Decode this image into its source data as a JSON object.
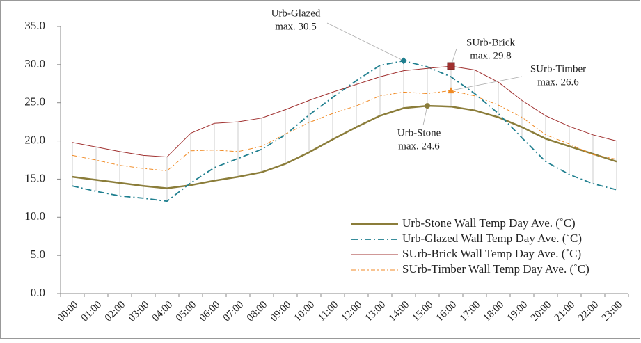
{
  "chart_data": {
    "type": "line",
    "categories": [
      "00:00",
      "01:00",
      "02:00",
      "03:00",
      "04:00",
      "05:00",
      "06:00",
      "07:00",
      "08:00",
      "09:00",
      "10:00",
      "11:00",
      "12:00",
      "13:00",
      "14:00",
      "15:00",
      "16:00",
      "17:00",
      "18:00",
      "19:00",
      "20:00",
      "21:00",
      "22:00",
      "23:00"
    ],
    "series": [
      {
        "name": "Urb-Stone Wall Temp Day Ave. (˚C)",
        "color": "#8b7d3a",
        "style": "solid",
        "values": [
          15.3,
          14.9,
          14.5,
          14.1,
          13.8,
          14.2,
          14.8,
          15.3,
          15.9,
          17.0,
          18.5,
          20.2,
          21.8,
          23.3,
          24.3,
          24.6,
          24.5,
          24.0,
          23.1,
          21.8,
          20.3,
          19.3,
          18.3,
          17.3
        ]
      },
      {
        "name": "Urb-Glazed Wall Temp Day Ave. (˚C)",
        "color": "#1f7f8f",
        "style": "dashdot",
        "values": [
          14.1,
          13.4,
          12.8,
          12.5,
          12.1,
          14.5,
          16.5,
          17.7,
          18.9,
          20.8,
          23.4,
          25.7,
          27.9,
          29.9,
          30.5,
          29.7,
          28.4,
          26.2,
          23.6,
          20.4,
          17.3,
          15.6,
          14.4,
          13.6
        ]
      },
      {
        "name": "SUrb-Brick Wall Temp Day Ave. (˚C)",
        "color": "#a0302f",
        "style": "thin",
        "values": [
          19.8,
          19.2,
          18.6,
          18.1,
          17.9,
          21.0,
          22.3,
          22.5,
          23.0,
          24.1,
          25.3,
          26.4,
          27.4,
          28.4,
          29.2,
          29.5,
          29.8,
          29.3,
          27.7,
          25.3,
          23.3,
          21.9,
          20.8,
          20.0
        ]
      },
      {
        "name": "SUrb-Timber Wall Temp Day Ave. (˚C)",
        "color": "#f08a24",
        "style": "dashdotthin",
        "values": [
          18.1,
          17.5,
          16.8,
          16.4,
          16.1,
          18.7,
          18.8,
          18.6,
          19.3,
          20.9,
          22.4,
          23.6,
          24.6,
          25.9,
          26.4,
          26.2,
          26.6,
          25.9,
          24.7,
          23.1,
          20.8,
          19.6,
          18.2,
          17.6
        ]
      }
    ],
    "annotations": [
      {
        "series": 0,
        "point": 15,
        "marker": "circle",
        "lines": [
          "Urb-Stone",
          "max. 24.6"
        ]
      },
      {
        "series": 1,
        "point": 14,
        "marker": "diamond",
        "lines": [
          "Urb-Glazed",
          "max. 30.5"
        ]
      },
      {
        "series": 2,
        "point": 16,
        "marker": "square",
        "lines": [
          "SUrb-Brick",
          "max. 29.8"
        ]
      },
      {
        "series": 3,
        "point": 16,
        "marker": "triangle",
        "lines": [
          "SUrb-Timber",
          "max. 26.6"
        ]
      }
    ],
    "ylim": [
      0,
      35
    ],
    "yticks": [
      {
        "value": 0,
        "label": "0.0"
      },
      {
        "value": 5,
        "label": "5.0"
      },
      {
        "value": 10,
        "label": "10.0"
      },
      {
        "value": 15,
        "label": "15.0"
      },
      {
        "value": 20,
        "label": "20.0"
      },
      {
        "value": 25,
        "label": "25.0"
      },
      {
        "value": 30,
        "label": "30.0"
      },
      {
        "value": 35,
        "label": "35.0"
      }
    ],
    "high_low_lines": true,
    "legend": "lower right"
  }
}
